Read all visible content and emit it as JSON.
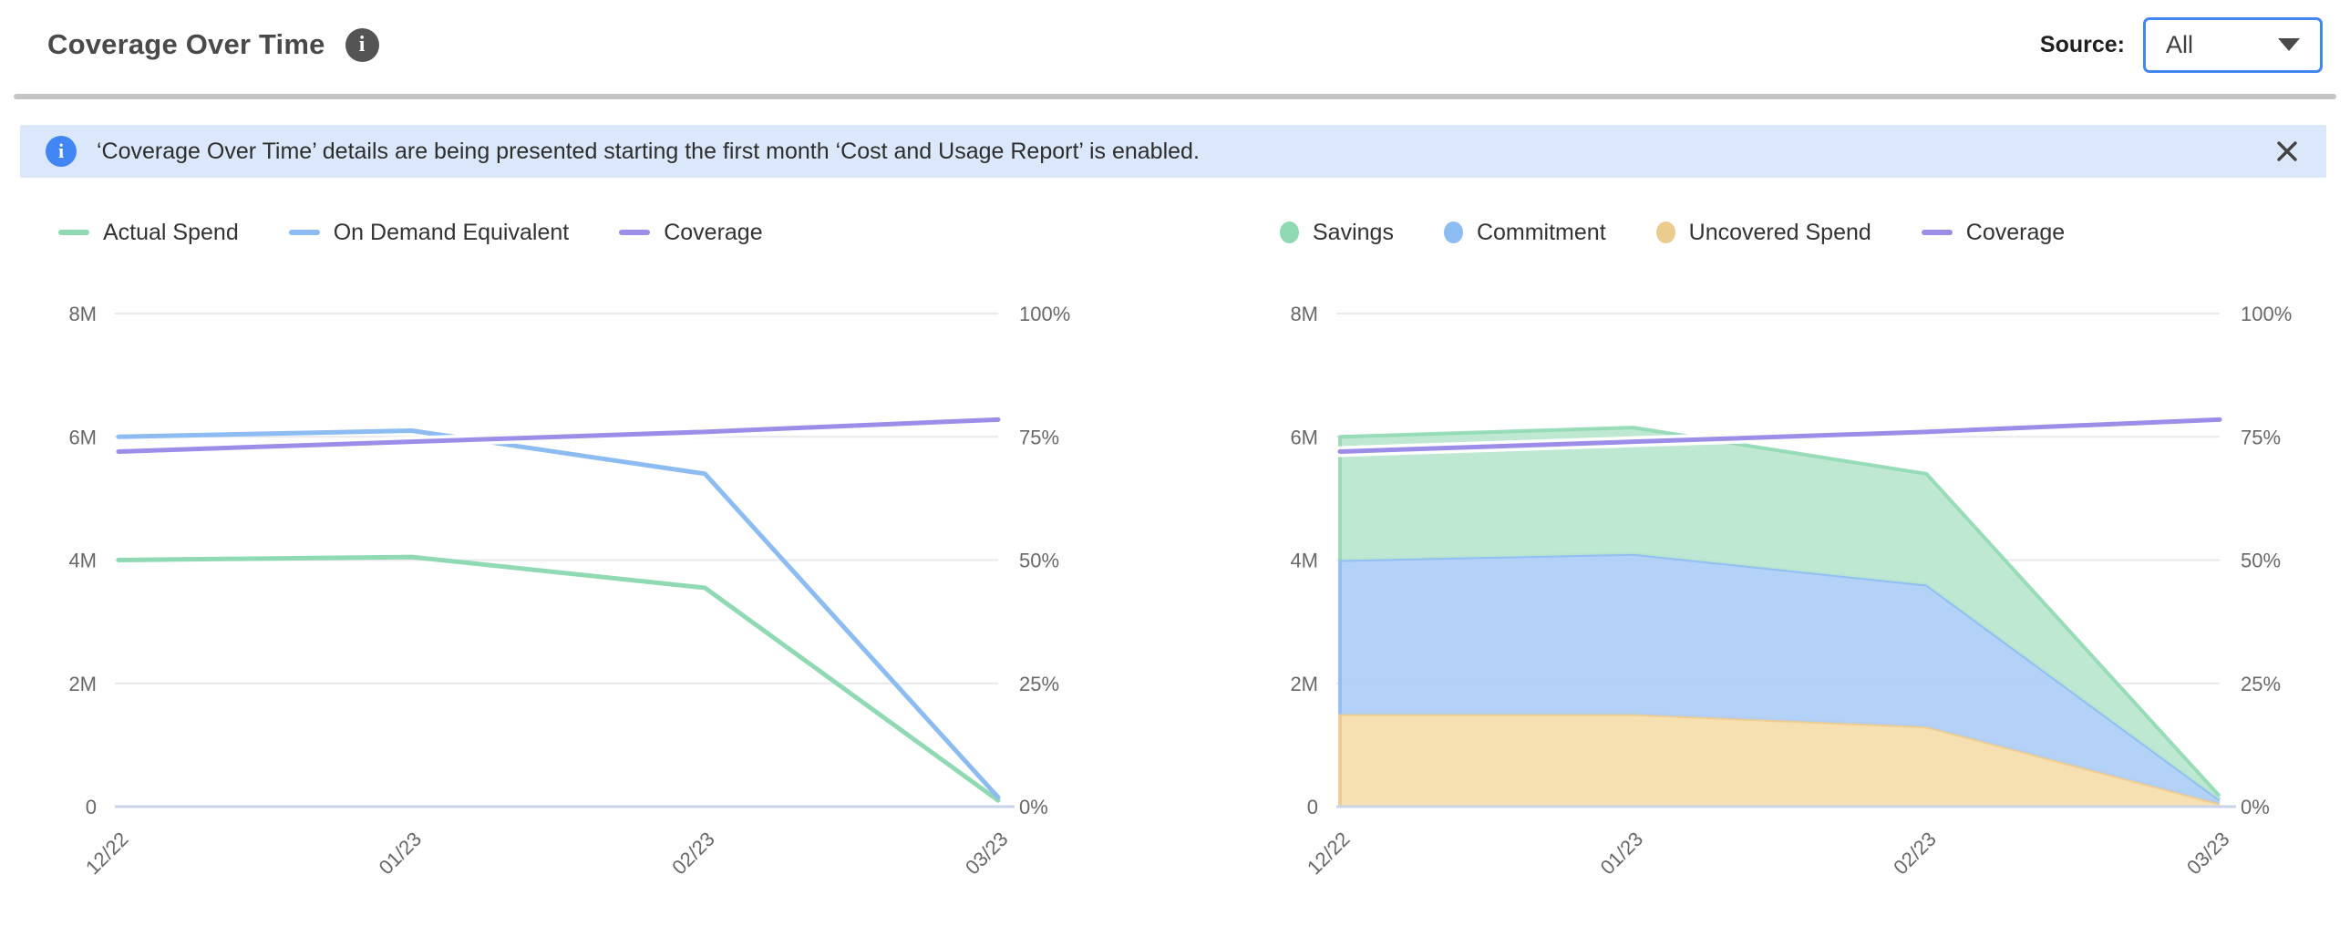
{
  "header": {
    "title": "Coverage Over Time",
    "source_label": "Source:",
    "source_value": "All"
  },
  "banner": {
    "text": "‘Coverage Over Time’ details are being presented starting the first month ‘Cost and Usage Report’ is enabled."
  },
  "icons": {
    "title_info_glyph": "i",
    "banner_info_glyph": "i",
    "close": "x-mark",
    "dropdown_caret": "triangle-down"
  },
  "colors": {
    "accent_blue": "#4285f4",
    "banner_bg": "#dbe8fc",
    "series_green": "#8fd9b3",
    "series_blue": "#8cbcf2",
    "series_purple": "#9c8ee8",
    "series_orange_border": "#eccb8e",
    "fill_green": "#b9e6ce",
    "fill_blue": "#aecdf8",
    "fill_orange": "#f5ddab",
    "gridline": "#e9e9eb",
    "baseline": "#c9d4ea"
  },
  "chart_data": [
    {
      "type": "line",
      "title": "Spend vs On Demand Equivalent with Coverage",
      "categories": [
        "12/22",
        "01/23",
        "02/23",
        "03/23"
      ],
      "left_axis": {
        "ticks": [
          "0",
          "2M",
          "4M",
          "6M",
          "8M"
        ],
        "min": 0,
        "max": 8000000
      },
      "right_axis": {
        "ticks": [
          "0%",
          "25%",
          "50%",
          "75%",
          "100%"
        ],
        "min": 0,
        "max": 100
      },
      "grid": true,
      "legend_position": "top",
      "legend": [
        "Actual Spend",
        "On Demand Equivalent",
        "Coverage"
      ],
      "series": [
        {
          "name": "Actual Spend",
          "type": "line",
          "axis": "left",
          "color": "#8fd9b3",
          "values": [
            4000000,
            4050000,
            3550000,
            100000
          ]
        },
        {
          "name": "On Demand Equivalent",
          "type": "line",
          "axis": "left",
          "color": "#8cbcf2",
          "values": [
            6000000,
            6100000,
            5400000,
            150000
          ]
        },
        {
          "name": "Coverage",
          "type": "line",
          "axis": "right",
          "color": "#9c8ee8",
          "halo": true,
          "values": [
            72,
            74,
            76,
            78.5
          ]
        }
      ]
    },
    {
      "type": "area",
      "title": "Savings / Commitment / Uncovered Spend with Coverage",
      "stacked": true,
      "categories": [
        "12/22",
        "01/23",
        "02/23",
        "03/23"
      ],
      "left_axis": {
        "ticks": [
          "0",
          "2M",
          "4M",
          "6M",
          "8M"
        ],
        "min": 0,
        "max": 8000000
      },
      "right_axis": {
        "ticks": [
          "0%",
          "25%",
          "50%",
          "75%",
          "100%"
        ],
        "min": 0,
        "max": 100
      },
      "grid": true,
      "legend_position": "top",
      "legend": [
        "Savings",
        "Commitment",
        "Uncovered Spend",
        "Coverage"
      ],
      "series": [
        {
          "name": "Uncovered Spend",
          "type": "area",
          "axis": "left",
          "color": "#eccb8e",
          "fill": "#f5ddab",
          "values": [
            1500000,
            1500000,
            1300000,
            50000
          ]
        },
        {
          "name": "Commitment",
          "type": "area",
          "axis": "left",
          "color": "#8cbcf2",
          "fill": "#aecdf8",
          "values": [
            2500000,
            2600000,
            2300000,
            60000
          ]
        },
        {
          "name": "Savings",
          "type": "area",
          "axis": "left",
          "color": "#8fd9b3",
          "fill": "#b9e6ce",
          "values": [
            2000000,
            2050000,
            1800000,
            60000
          ]
        },
        {
          "name": "Coverage",
          "type": "line",
          "axis": "right",
          "color": "#9c8ee8",
          "halo": true,
          "values": [
            72,
            74,
            76,
            78.5
          ]
        }
      ]
    }
  ]
}
